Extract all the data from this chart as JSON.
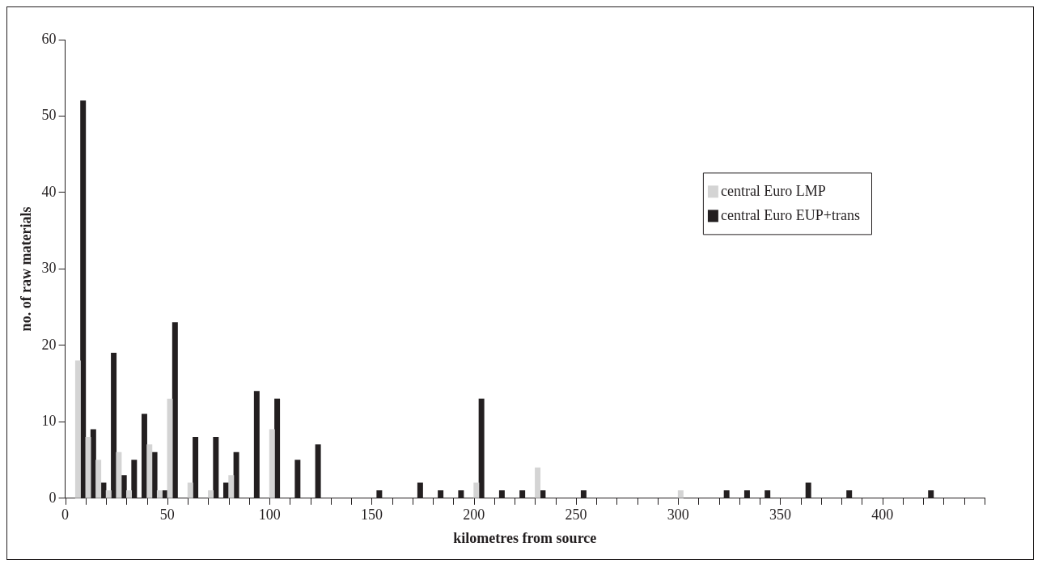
{
  "chart_data": {
    "type": "bar",
    "xlabel": "kilometres from source",
    "ylabel": "no. of raw materials",
    "x": [
      7.5,
      12.5,
      17.5,
      22.5,
      27.5,
      32.5,
      37.5,
      42.5,
      47.5,
      52.5,
      62.5,
      72.5,
      77.5,
      82.5,
      92.5,
      102.5,
      112.5,
      122.5,
      152.5,
      172.5,
      182.5,
      192.5,
      202.5,
      212.5,
      222.5,
      232.5,
      252.5,
      302.5,
      322.5,
      332.5,
      342.5,
      362.5,
      382.5,
      422.5
    ],
    "series": [
      {
        "name": "central Euro LMP",
        "color": "#d4d4d4",
        "values": [
          18,
          8,
          5,
          1,
          6,
          1,
          null,
          7,
          1,
          13,
          2,
          1,
          null,
          3,
          null,
          9,
          null,
          null,
          null,
          null,
          null,
          null,
          2,
          null,
          null,
          4,
          null,
          1,
          null,
          null,
          null,
          null,
          null,
          null
        ]
      },
      {
        "name": "central Euro EUP+trans",
        "color": "#231f20",
        "values": [
          52,
          9,
          2,
          19,
          3,
          5,
          11,
          6,
          1,
          23,
          8,
          8,
          2,
          6,
          14,
          13,
          5,
          7,
          1,
          2,
          1,
          1,
          13,
          1,
          1,
          1,
          1,
          null,
          1,
          1,
          1,
          2,
          1,
          1
        ]
      }
    ],
    "xlim": [
      0,
      450
    ],
    "xticks": [
      0,
      {
        "value": 10,
        "label": null
      },
      {
        "value": 20,
        "label": null
      },
      {
        "value": 30,
        "label": null
      },
      {
        "value": 40,
        "label": null
      },
      50,
      {
        "value": 60,
        "label": null
      },
      {
        "value": 70,
        "label": null
      },
      {
        "value": 80,
        "label": null
      },
      {
        "value": 90,
        "label": null
      },
      100,
      {
        "value": 110,
        "label": null
      },
      {
        "value": 120,
        "label": null
      },
      {
        "value": 130,
        "label": null
      },
      {
        "value": 140,
        "label": null
      },
      150,
      {
        "value": 160,
        "label": null
      },
      {
        "value": 170,
        "label": null
      },
      {
        "value": 180,
        "label": null
      },
      {
        "value": 190,
        "label": null
      },
      200,
      {
        "value": 210,
        "label": null
      },
      {
        "value": 220,
        "label": null
      },
      {
        "value": 230,
        "label": null
      },
      {
        "value": 240,
        "label": null
      },
      250,
      {
        "value": 260,
        "label": null
      },
      {
        "value": 270,
        "label": null
      },
      {
        "value": 280,
        "label": null
      },
      {
        "value": 290,
        "label": null
      },
      300,
      {
        "value": 310,
        "label": null
      },
      {
        "value": 320,
        "label": null
      },
      {
        "value": 330,
        "label": null
      },
      {
        "value": 340,
        "label": null
      },
      350,
      {
        "value": 360,
        "label": null
      },
      {
        "value": 370,
        "label": null
      },
      {
        "value": 380,
        "label": null
      },
      {
        "value": 390,
        "label": null
      },
      400,
      {
        "value": 410,
        "label": null
      },
      {
        "value": 420,
        "label": null
      },
      {
        "value": 430,
        "label": null
      },
      {
        "value": 440,
        "label": null
      },
      {
        "value": 450,
        "label": null
      }
    ],
    "ylim": [
      0,
      60
    ],
    "yticks": [
      0,
      10,
      20,
      30,
      40,
      50,
      60
    ],
    "grid": false,
    "legend": "right"
  }
}
